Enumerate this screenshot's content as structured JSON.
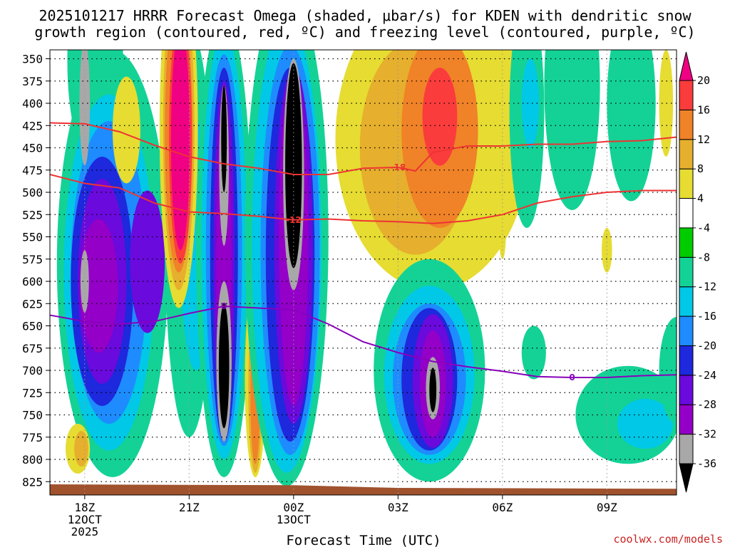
{
  "chart_data": {
    "type": "heatmap",
    "title_lines": [
      "2025101217 HRRR Forecast Omega (shaded, μbar/s) for KDEN with dendritic snow",
      "growth region (contoured, red, ºC) and freezing level (contoured, purple, ºC)"
    ],
    "xlabel": "Forecast Time (UTC)",
    "x_ticks": [
      {
        "hours": 0,
        "lines": [
          "18Z",
          "12OCT",
          "2025"
        ]
      },
      {
        "hours": 3,
        "lines": [
          "21Z"
        ]
      },
      {
        "hours": 6,
        "lines": [
          "00Z",
          "13OCT"
        ]
      },
      {
        "hours": 9,
        "lines": [
          "03Z"
        ]
      },
      {
        "hours": 12,
        "lines": [
          "06Z"
        ]
      },
      {
        "hours": 15,
        "lines": [
          "09Z"
        ]
      }
    ],
    "x_range_hours": [
      -1,
      17
    ],
    "y_range_mb": [
      340,
      840
    ],
    "y_ticks_mb": [
      350,
      375,
      400,
      425,
      450,
      475,
      500,
      525,
      550,
      575,
      600,
      625,
      650,
      675,
      700,
      725,
      750,
      775,
      800,
      825
    ],
    "y_tick_labels": [
      "350",
      "375",
      "400",
      "425",
      "450",
      "475",
      "500",
      "525",
      "550",
      "575",
      "600",
      "625",
      "650",
      "675",
      "700",
      "725",
      "750",
      "775",
      "800",
      "825"
    ],
    "colorbar": {
      "levels": [
        -36,
        -32,
        -28,
        -24,
        -20,
        -16,
        -12,
        -8,
        -4,
        4,
        8,
        12,
        16,
        20
      ],
      "labels": [
        "-36",
        "-32",
        "-28",
        "-24",
        "-20",
        "-16",
        "-12",
        "-8",
        "-4",
        "4",
        "8",
        "12",
        "16",
        "20"
      ],
      "colors": [
        "#000000",
        "#a8a8a8",
        "#9400c8",
        "#6a0adc",
        "#1e28dc",
        "#1e8cff",
        "#00c8e6",
        "#14d296",
        "#00cc00",
        "#ffffff",
        "#e6dc32",
        "#e6af2d",
        "#f08228",
        "#fa3c3c",
        "#f00082"
      ]
    },
    "series": [
      {
        "name": "-18 C isotherm",
        "color": "#ee3333",
        "x": [
          -1,
          0,
          1,
          2,
          3,
          4,
          5,
          6,
          7,
          8,
          9,
          9.5,
          10,
          11,
          12,
          13,
          14,
          15,
          16,
          17
        ],
        "y": [
          422,
          423,
          432,
          447,
          460,
          468,
          473,
          480,
          480,
          473,
          472,
          476,
          455,
          448,
          448,
          446,
          446,
          443,
          442,
          438
        ]
      },
      {
        "name": "-12 C isotherm",
        "color": "#ee3333",
        "x": [
          -1,
          0,
          1,
          2,
          3,
          4,
          5,
          6,
          7,
          8,
          9,
          10,
          11,
          12,
          13,
          14,
          15,
          16,
          17
        ],
        "y": [
          480,
          490,
          495,
          512,
          522,
          524,
          527,
          531,
          530,
          532,
          533,
          535,
          532,
          525,
          512,
          505,
          500,
          498,
          498
        ]
      },
      {
        "name": "0 C freezing level",
        "color": "#8800bb",
        "x": [
          -1,
          0,
          1,
          2,
          3,
          4,
          5,
          6,
          7,
          8,
          9,
          10,
          11,
          12,
          13,
          14,
          15,
          16,
          17
        ],
        "y": [
          638,
          645,
          648,
          645,
          636,
          628,
          630,
          632,
          648,
          668,
          680,
          690,
          696,
          701,
          707,
          708,
          708,
          706,
          705
        ]
      }
    ],
    "contour_labels": [
      {
        "text": "-18",
        "series": 0,
        "x": 9.0,
        "y": 472
      },
      {
        "text": "-12",
        "series": 1,
        "x": 6.0,
        "y": 531
      },
      {
        "text": "0",
        "series": 2,
        "x": 4.0,
        "y": 628
      },
      {
        "text": "0",
        "series": 2,
        "x": 14.0,
        "y": 708
      }
    ],
    "shaded_regions": [
      {
        "v": -8,
        "x": 0.3,
        "y": 352,
        "rx": 0.8,
        "ry": 120
      },
      {
        "v": -8,
        "x": 0.8,
        "y": 580,
        "rx": 1.6,
        "ry": 240
      },
      {
        "v": -12,
        "x": 0.7,
        "y": 590,
        "rx": 1.3,
        "ry": 200
      },
      {
        "v": -16,
        "x": 0.7,
        "y": 590,
        "rx": 1.1,
        "ry": 170
      },
      {
        "v": -20,
        "x": 0.5,
        "y": 600,
        "rx": 0.9,
        "ry": 140
      },
      {
        "v": -24,
        "x": 0.5,
        "y": 600,
        "rx": 0.7,
        "ry": 115
      },
      {
        "v": -28,
        "x": 0.4,
        "y": 605,
        "rx": 0.55,
        "ry": 75
      },
      {
        "v": -32,
        "x": 0.0,
        "y": 400,
        "rx": 0.15,
        "ry": 70
      },
      {
        "v": -32,
        "x": 0.0,
        "y": 600,
        "rx": 0.12,
        "ry": 35
      },
      {
        "v": -28,
        "x": 1.8,
        "y": 575,
        "rx": 0.4,
        "ry": 60
      },
      {
        "v": -24,
        "x": 1.8,
        "y": 578,
        "rx": 0.5,
        "ry": 80
      },
      {
        "v": 4,
        "x": 1.2,
        "y": 430,
        "rx": 0.4,
        "ry": 60
      },
      {
        "v": -8,
        "x": 3.0,
        "y": 545,
        "rx": 0.7,
        "ry": 230
      },
      {
        "v": -12,
        "x": 3.2,
        "y": 560,
        "rx": 0.45,
        "ry": 140
      },
      {
        "v": -16,
        "x": 3.6,
        "y": 600,
        "rx": 0.3,
        "ry": 150
      },
      {
        "v": 4,
        "x": 2.7,
        "y": 430,
        "rx": 0.55,
        "ry": 200
      },
      {
        "v": 8,
        "x": 2.7,
        "y": 430,
        "rx": 0.45,
        "ry": 180
      },
      {
        "v": 12,
        "x": 2.7,
        "y": 435,
        "rx": 0.4,
        "ry": 155
      },
      {
        "v": 16,
        "x": 2.75,
        "y": 440,
        "rx": 0.33,
        "ry": 140
      },
      {
        "v": 20,
        "x": 2.75,
        "y": 440,
        "rx": 0.27,
        "ry": 125
      },
      {
        "v": -8,
        "x": 4.0,
        "y": 560,
        "rx": 0.8,
        "ry": 260
      },
      {
        "v": -12,
        "x": 4.0,
        "y": 560,
        "rx": 0.65,
        "ry": 240
      },
      {
        "v": -16,
        "x": 4.0,
        "y": 565,
        "rx": 0.52,
        "ry": 220
      },
      {
        "v": -20,
        "x": 4.0,
        "y": 570,
        "rx": 0.4,
        "ry": 210
      },
      {
        "v": -24,
        "x": 4.0,
        "y": 575,
        "rx": 0.3,
        "ry": 200
      },
      {
        "v": -28,
        "x": 4.0,
        "y": 580,
        "rx": 0.22,
        "ry": 190
      },
      {
        "v": -32,
        "x": 4.0,
        "y": 470,
        "rx": 0.14,
        "ry": 90
      },
      {
        "v": -36,
        "x": 4.0,
        "y": 440,
        "rx": 0.08,
        "ry": 60
      },
      {
        "v": -32,
        "x": 4.0,
        "y": 690,
        "rx": 0.22,
        "ry": 90
      },
      {
        "v": -36,
        "x": 4.0,
        "y": 695,
        "rx": 0.15,
        "ry": 70
      },
      {
        "v": 4,
        "x": 4.9,
        "y": 710,
        "rx": 0.3,
        "ry": 110
      },
      {
        "v": 8,
        "x": 4.9,
        "y": 720,
        "rx": 0.2,
        "ry": 95
      },
      {
        "v": 12,
        "x": 4.9,
        "y": 725,
        "rx": 0.14,
        "ry": 80
      },
      {
        "v": -8,
        "x": 5.8,
        "y": 550,
        "rx": 1.2,
        "ry": 280
      },
      {
        "v": -12,
        "x": 5.8,
        "y": 560,
        "rx": 1.0,
        "ry": 255
      },
      {
        "v": -16,
        "x": 5.9,
        "y": 565,
        "rx": 0.85,
        "ry": 230
      },
      {
        "v": -20,
        "x": 5.9,
        "y": 570,
        "rx": 0.7,
        "ry": 210
      },
      {
        "v": -24,
        "x": 6.0,
        "y": 560,
        "rx": 0.55,
        "ry": 200
      },
      {
        "v": -28,
        "x": 6.0,
        "y": 550,
        "rx": 0.42,
        "ry": 190
      },
      {
        "v": -32,
        "x": 6.0,
        "y": 480,
        "rx": 0.3,
        "ry": 130
      },
      {
        "v": -36,
        "x": 6.0,
        "y": 470,
        "rx": 0.24,
        "ry": 115
      },
      {
        "v": 4,
        "x": 10.0,
        "y": 440,
        "rx": 2.8,
        "ry": 170
      },
      {
        "v": 8,
        "x": 9.5,
        "y": 450,
        "rx": 1.6,
        "ry": 120
      },
      {
        "v": 12,
        "x": 10.2,
        "y": 430,
        "rx": 1.1,
        "ry": 110
      },
      {
        "v": 16,
        "x": 10.2,
        "y": 415,
        "rx": 0.5,
        "ry": 55
      },
      {
        "v": -8,
        "x": 9.9,
        "y": 700,
        "rx": 1.6,
        "ry": 125
      },
      {
        "v": -12,
        "x": 9.9,
        "y": 705,
        "rx": 1.3,
        "ry": 100
      },
      {
        "v": -16,
        "x": 9.9,
        "y": 710,
        "rx": 1.05,
        "ry": 85
      },
      {
        "v": -20,
        "x": 9.9,
        "y": 710,
        "rx": 0.8,
        "ry": 80
      },
      {
        "v": -24,
        "x": 10.0,
        "y": 712,
        "rx": 0.58,
        "ry": 75
      },
      {
        "v": -28,
        "x": 10.0,
        "y": 715,
        "rx": 0.38,
        "ry": 60
      },
      {
        "v": -32,
        "x": 10.0,
        "y": 720,
        "rx": 0.2,
        "ry": 35
      },
      {
        "v": -36,
        "x": 10.0,
        "y": 722,
        "rx": 0.1,
        "ry": 25
      },
      {
        "v": -8,
        "x": 14.0,
        "y": 380,
        "rx": 0.8,
        "ry": 140
      },
      {
        "v": -8,
        "x": 12.7,
        "y": 410,
        "rx": 0.5,
        "ry": 130
      },
      {
        "v": -8,
        "x": 15.7,
        "y": 400,
        "rx": 0.7,
        "ry": 110
      },
      {
        "v": -12,
        "x": 12.8,
        "y": 400,
        "rx": 0.25,
        "ry": 50
      },
      {
        "v": 4,
        "x": 16.7,
        "y": 400,
        "rx": 0.2,
        "ry": 60
      },
      {
        "v": -8,
        "x": 12.9,
        "y": 680,
        "rx": 0.35,
        "ry": 30
      },
      {
        "v": -8,
        "x": 15.6,
        "y": 750,
        "rx": 1.5,
        "ry": 55
      },
      {
        "v": -12,
        "x": 16.1,
        "y": 760,
        "rx": 0.8,
        "ry": 28
      },
      {
        "v": -8,
        "x": 17.0,
        "y": 700,
        "rx": 0.5,
        "ry": 60
      },
      {
        "v": 4,
        "x": 12.0,
        "y": 545,
        "rx": 0.1,
        "ry": 30
      },
      {
        "v": 4,
        "x": 15.0,
        "y": 565,
        "rx": 0.15,
        "ry": 25
      },
      {
        "v": 4,
        "x": -0.2,
        "y": 788,
        "rx": 0.35,
        "ry": 28
      },
      {
        "v": 8,
        "x": -0.1,
        "y": 788,
        "rx": 0.2,
        "ry": 20
      }
    ],
    "terrain": {
      "label": "surface",
      "x": [
        -1,
        6,
        9,
        17
      ],
      "y": [
        828,
        829,
        832,
        833
      ]
    },
    "credit": "coolwx.com/models"
  }
}
